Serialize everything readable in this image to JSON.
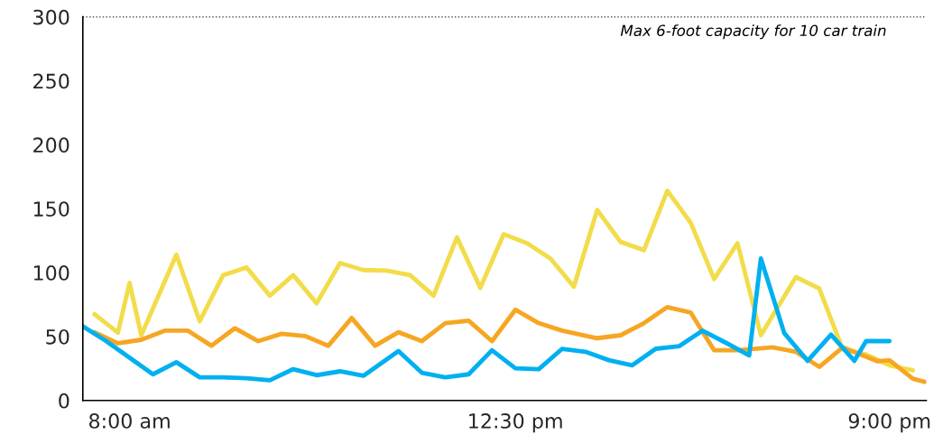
{
  "chart_data": {
    "type": "line",
    "categories": [
      null,
      null,
      null,
      null,
      "8:00 am",
      null,
      null,
      null,
      null,
      null,
      null,
      null,
      null,
      null,
      null,
      null,
      null,
      null,
      null,
      null,
      null,
      null,
      null,
      null,
      null,
      null,
      null,
      null,
      null,
      null,
      null,
      null,
      null,
      null,
      null,
      null,
      null,
      "12:30 pm",
      null,
      null,
      null,
      null,
      null,
      null,
      null,
      null,
      null,
      null,
      null,
      null,
      null,
      null,
      null,
      null,
      null,
      null,
      null,
      null,
      null,
      null,
      null,
      null,
      null,
      null,
      null,
      null,
      null,
      null,
      null,
      "9:00 pm",
      null,
      null,
      null
    ],
    "ylim": [
      0,
      300
    ],
    "yticks": [
      0,
      50,
      100,
      150,
      200,
      250,
      300
    ],
    "grid": false,
    "legend": false,
    "marker": "none",
    "line_style": "solid",
    "ref_lines": [
      {
        "axis": "y",
        "value": 300,
        "label": "Max 6-foot capacity for 10 car train",
        "color": "#595959",
        "line_style": "dotted"
      }
    ],
    "series": [
      {
        "color": "#f2dc4a",
        "values": [
          null,
          67.5,
          null,
          53,
          92,
          51,
          null,
          null,
          114,
          null,
          62,
          null,
          98,
          null,
          104,
          null,
          82,
          null,
          98,
          null,
          76,
          null,
          107.5,
          null,
          102,
          null,
          101.6,
          null,
          98,
          null,
          82,
          null,
          127.5,
          null,
          88,
          null,
          130,
          null,
          123,
          null,
          111,
          null,
          89,
          null,
          149,
          null,
          124,
          null,
          117.6,
          null,
          164,
          null,
          139,
          null,
          95,
          null,
          123,
          null,
          51,
          null,
          null,
          96.5,
          null,
          87.5,
          null,
          40,
          null,
          36,
          null,
          27.5,
          null,
          23.5,
          null
        ]
      },
      {
        "color": "#f6a623",
        "values": [
          null,
          53.4,
          null,
          44.7,
          null,
          47.5,
          null,
          54.6,
          null,
          54.6,
          null,
          42.8,
          null,
          56.5,
          null,
          46.4,
          null,
          52.2,
          null,
          50.4,
          null,
          42.8,
          null,
          64.5,
          null,
          42.8,
          null,
          53.4,
          null,
          46.4,
          null,
          60.5,
          null,
          62.4,
          null,
          46.4,
          null,
          71,
          null,
          60.5,
          null,
          54.6,
          null,
          null,
          48.7,
          null,
          51,
          null,
          60.5,
          null,
          73,
          null,
          68.7,
          null,
          39.3,
          null,
          39.3,
          null,
          null,
          41.6,
          null,
          38,
          null,
          26.3,
          null,
          41.6,
          null,
          null,
          30.6,
          31.5,
          null,
          17,
          14.6
        ]
      },
      {
        "color": "#00b0f0",
        "values": [
          58,
          null,
          46.4,
          null,
          null,
          null,
          20.5,
          null,
          29.9,
          null,
          18.1,
          null,
          18.1,
          null,
          17.4,
          null,
          15.8,
          null,
          24.5,
          null,
          19.8,
          null,
          22.8,
          null,
          19.3,
          null,
          null,
          38.6,
          null,
          21.7,
          null,
          18.1,
          null,
          20.5,
          null,
          39.3,
          null,
          25.2,
          null,
          24.5,
          null,
          40.4,
          null,
          38.1,
          null,
          31.5,
          null,
          27.5,
          null,
          40.4,
          null,
          42.4,
          null,
          54.6,
          null,
          45.2,
          null,
          35.3,
          111,
          null,
          52.7,
          null,
          31,
          null,
          51.5,
          null,
          31,
          46.4,
          null,
          46.4,
          null,
          null,
          null
        ]
      }
    ]
  }
}
